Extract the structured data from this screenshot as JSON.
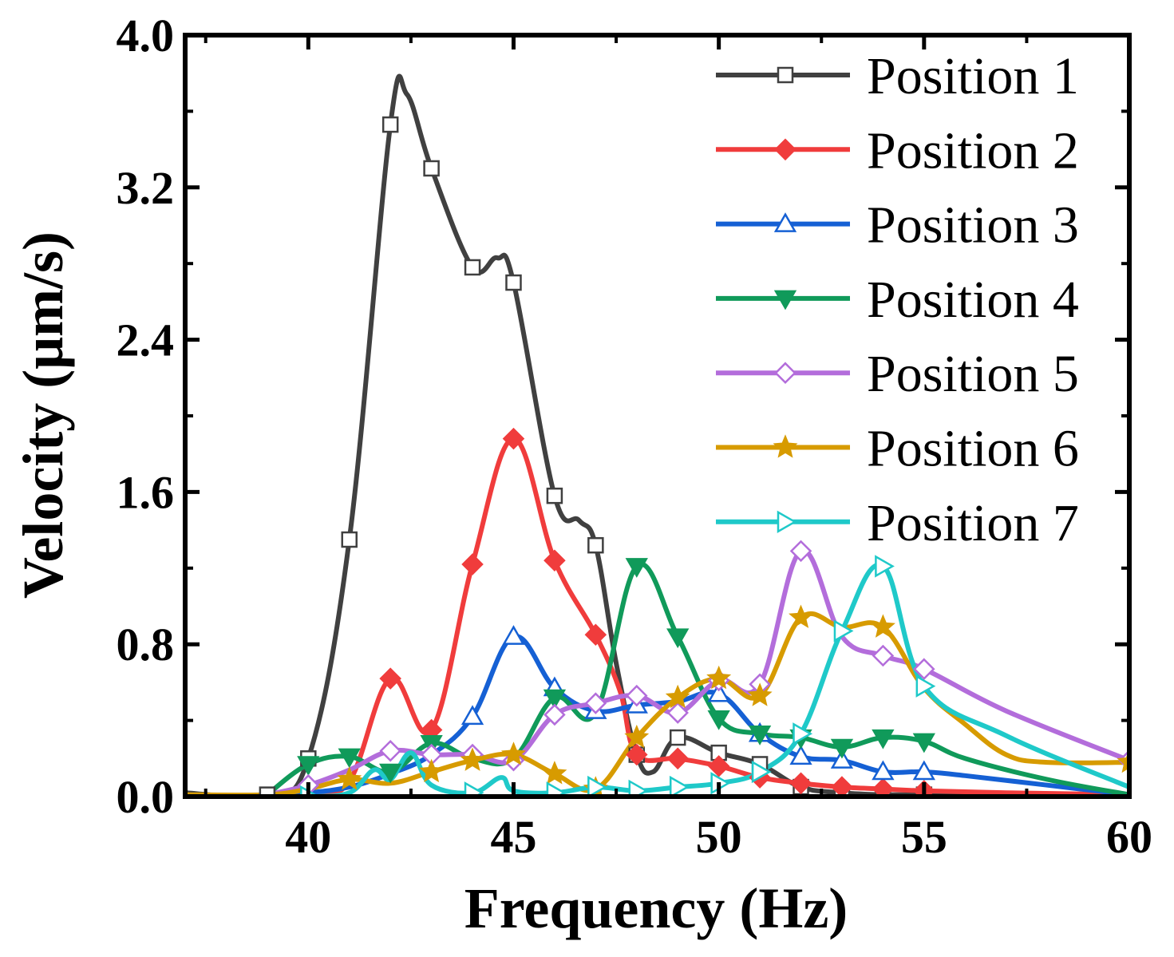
{
  "chart_data": {
    "type": "line",
    "xlabel": "Frequency (Hz)",
    "ylabel": "Velocity (μm/s)",
    "xlim": [
      37,
      60
    ],
    "ylim": [
      0,
      4.0
    ],
    "xticks": [
      40,
      45,
      50,
      55,
      60
    ],
    "xtick_labels": [
      "40",
      "45",
      "50",
      "55",
      "60"
    ],
    "yticks": [
      0,
      0.8,
      1.6,
      2.4,
      3.2,
      4.0
    ],
    "ytick_labels": [
      "0.0",
      "0.8",
      "1.6",
      "2.4",
      "3.2",
      "4.0"
    ],
    "legend_position": "top-right",
    "series": [
      {
        "name": "Position 1",
        "color": "#404040",
        "marker": "square-open",
        "points": [
          [
            37,
            0.02
          ],
          [
            39,
            0.01
          ],
          [
            40,
            0.2
          ],
          [
            41,
            1.35
          ],
          [
            42,
            3.53
          ],
          [
            42.4,
            3.69
          ],
          [
            43,
            3.3
          ],
          [
            44,
            2.78
          ],
          [
            44.6,
            2.83
          ],
          [
            45,
            2.7
          ],
          [
            46,
            1.58
          ],
          [
            46.6,
            1.45
          ],
          [
            47,
            1.32
          ],
          [
            47.5,
            0.7
          ],
          [
            48,
            0.22
          ],
          [
            48.4,
            0.13
          ],
          [
            49,
            0.31
          ],
          [
            50,
            0.23
          ],
          [
            51,
            0.17
          ],
          [
            52,
            0.05
          ],
          [
            53,
            0.02
          ],
          [
            54,
            0.01
          ],
          [
            55,
            0.01
          ],
          [
            60,
            0.01
          ]
        ],
        "markers": [
          [
            39,
            0.01
          ],
          [
            40,
            0.2
          ],
          [
            41,
            1.35
          ],
          [
            42,
            3.53
          ],
          [
            43,
            3.3
          ],
          [
            44,
            2.78
          ],
          [
            45,
            2.7
          ],
          [
            46,
            1.58
          ],
          [
            47,
            1.32
          ],
          [
            48,
            0.22
          ],
          [
            49,
            0.31
          ],
          [
            50,
            0.23
          ],
          [
            51,
            0.17
          ],
          [
            52,
            0.05
          ],
          [
            53,
            0.02
          ],
          [
            54,
            0.01
          ],
          [
            55,
            0.01
          ]
        ]
      },
      {
        "name": "Position 2",
        "color": "#f03c3c",
        "marker": "diamond-filled",
        "points": [
          [
            39,
            0.01
          ],
          [
            40,
            0.01
          ],
          [
            41,
            0.08
          ],
          [
            42,
            0.62
          ],
          [
            43,
            0.35
          ],
          [
            44,
            1.22
          ],
          [
            45,
            1.88
          ],
          [
            46,
            1.24
          ],
          [
            47,
            0.85
          ],
          [
            47.6,
            0.55
          ],
          [
            48,
            0.22
          ],
          [
            49,
            0.2
          ],
          [
            50,
            0.16
          ],
          [
            51,
            0.1
          ],
          [
            52,
            0.07
          ],
          [
            53,
            0.05
          ],
          [
            54,
            0.04
          ],
          [
            55,
            0.03
          ],
          [
            57,
            0.02
          ],
          [
            60,
            0.01
          ]
        ],
        "markers": [
          [
            42,
            0.62
          ],
          [
            43,
            0.35
          ],
          [
            44,
            1.22
          ],
          [
            45,
            1.88
          ],
          [
            46,
            1.24
          ],
          [
            47,
            0.85
          ],
          [
            48,
            0.22
          ],
          [
            49,
            0.2
          ],
          [
            50,
            0.16
          ],
          [
            51,
            0.1
          ],
          [
            52,
            0.07
          ],
          [
            53,
            0.05
          ],
          [
            54,
            0.04
          ],
          [
            55,
            0.03
          ]
        ]
      },
      {
        "name": "Position 3",
        "color": "#1560d4",
        "marker": "triangle-up-open",
        "points": [
          [
            39,
            0.01
          ],
          [
            40,
            0.02
          ],
          [
            41,
            0.05
          ],
          [
            42,
            0.12
          ],
          [
            43,
            0.22
          ],
          [
            44,
            0.42
          ],
          [
            45,
            0.84
          ],
          [
            46,
            0.57
          ],
          [
            47,
            0.45
          ],
          [
            48,
            0.48
          ],
          [
            49,
            0.5
          ],
          [
            50,
            0.54
          ],
          [
            51,
            0.33
          ],
          [
            52,
            0.21
          ],
          [
            53,
            0.19
          ],
          [
            54,
            0.13
          ],
          [
            55,
            0.13
          ],
          [
            56,
            0.11
          ],
          [
            58,
            0.06
          ],
          [
            60,
            0.01
          ]
        ],
        "markers": [
          [
            44,
            0.42
          ],
          [
            45,
            0.84
          ],
          [
            46,
            0.57
          ],
          [
            47,
            0.45
          ],
          [
            48,
            0.48
          ],
          [
            50,
            0.54
          ],
          [
            51,
            0.33
          ],
          [
            52,
            0.21
          ],
          [
            53,
            0.19
          ],
          [
            54,
            0.13
          ],
          [
            55,
            0.13
          ]
        ]
      },
      {
        "name": "Position 4",
        "color": "#109a5a",
        "marker": "triangle-down-filled",
        "points": [
          [
            39,
            0.01
          ],
          [
            40,
            0.17
          ],
          [
            41,
            0.21
          ],
          [
            42,
            0.13
          ],
          [
            43,
            0.28
          ],
          [
            44,
            0.2
          ],
          [
            45,
            0.2
          ],
          [
            46,
            0.52
          ],
          [
            47,
            0.44
          ],
          [
            48,
            1.21
          ],
          [
            49,
            0.84
          ],
          [
            50,
            0.41
          ],
          [
            51,
            0.33
          ],
          [
            52,
            0.31
          ],
          [
            53,
            0.26
          ],
          [
            54,
            0.31
          ],
          [
            55,
            0.29
          ],
          [
            56,
            0.2
          ],
          [
            58,
            0.09
          ],
          [
            60,
            0.01
          ]
        ],
        "markers": [
          [
            40,
            0.17
          ],
          [
            41,
            0.21
          ],
          [
            42,
            0.13
          ],
          [
            43,
            0.28
          ],
          [
            46,
            0.52
          ],
          [
            48,
            1.21
          ],
          [
            49,
            0.84
          ],
          [
            50,
            0.41
          ],
          [
            51,
            0.33
          ],
          [
            52,
            0.31
          ],
          [
            53,
            0.26
          ],
          [
            54,
            0.31
          ],
          [
            55,
            0.29
          ]
        ]
      },
      {
        "name": "Position 5",
        "color": "#b36ddb",
        "marker": "diamond-open",
        "points": [
          [
            39,
            0.01
          ],
          [
            40,
            0.06
          ],
          [
            41,
            0.14
          ],
          [
            42,
            0.24
          ],
          [
            43,
            0.22
          ],
          [
            44,
            0.22
          ],
          [
            45,
            0.19
          ],
          [
            46,
            0.43
          ],
          [
            47,
            0.49
          ],
          [
            48,
            0.53
          ],
          [
            49,
            0.44
          ],
          [
            50,
            0.61
          ],
          [
            51,
            0.59
          ],
          [
            52,
            1.29
          ],
          [
            53,
            0.84
          ],
          [
            54,
            0.74
          ],
          [
            55,
            0.67
          ],
          [
            57,
            0.45
          ],
          [
            60,
            0.19
          ]
        ],
        "markers": [
          [
            40,
            0.06
          ],
          [
            42,
            0.24
          ],
          [
            43,
            0.22
          ],
          [
            44,
            0.22
          ],
          [
            45,
            0.19
          ],
          [
            46,
            0.43
          ],
          [
            47,
            0.49
          ],
          [
            48,
            0.53
          ],
          [
            49,
            0.44
          ],
          [
            50,
            0.61
          ],
          [
            51,
            0.59
          ],
          [
            52,
            1.29
          ],
          [
            54,
            0.74
          ],
          [
            55,
            0.67
          ],
          [
            60,
            0.19
          ]
        ]
      },
      {
        "name": "Position 6",
        "color": "#d79b00",
        "marker": "star-filled",
        "points": [
          [
            37,
            0.01
          ],
          [
            39,
            0.01
          ],
          [
            40,
            0.04
          ],
          [
            41,
            0.09
          ],
          [
            42,
            0.07
          ],
          [
            43,
            0.13
          ],
          [
            44,
            0.19
          ],
          [
            45,
            0.22
          ],
          [
            46,
            0.12
          ],
          [
            47,
            0.04
          ],
          [
            48,
            0.31
          ],
          [
            49,
            0.52
          ],
          [
            50,
            0.62
          ],
          [
            51,
            0.53
          ],
          [
            52,
            0.94
          ],
          [
            53,
            0.89
          ],
          [
            54,
            0.89
          ],
          [
            55,
            0.57
          ],
          [
            56,
            0.38
          ],
          [
            57,
            0.22
          ],
          [
            58,
            0.18
          ],
          [
            60,
            0.18
          ]
        ],
        "markers": [
          [
            41,
            0.09
          ],
          [
            43,
            0.13
          ],
          [
            44,
            0.19
          ],
          [
            45,
            0.22
          ],
          [
            46,
            0.12
          ],
          [
            47,
            0.04
          ],
          [
            48,
            0.31
          ],
          [
            49,
            0.52
          ],
          [
            50,
            0.62
          ],
          [
            51,
            0.53
          ],
          [
            52,
            0.94
          ],
          [
            54,
            0.89
          ],
          [
            60,
            0.18
          ]
        ]
      },
      {
        "name": "Position 7",
        "color": "#1fc9c9",
        "marker": "triangle-right-open",
        "points": [
          [
            39,
            0.0
          ],
          [
            40,
            0.0
          ],
          [
            41,
            0.02
          ],
          [
            41.6,
            0.14
          ],
          [
            42,
            0.09
          ],
          [
            42.5,
            0.23
          ],
          [
            43,
            0.06
          ],
          [
            44,
            0.02
          ],
          [
            44.7,
            0.1
          ],
          [
            45,
            0.03
          ],
          [
            46,
            0.02
          ],
          [
            47,
            0.05
          ],
          [
            48,
            0.03
          ],
          [
            49,
            0.05
          ],
          [
            50,
            0.07
          ],
          [
            51,
            0.13
          ],
          [
            52,
            0.33
          ],
          [
            53,
            0.87
          ],
          [
            54,
            1.21
          ],
          [
            55,
            0.58
          ],
          [
            57,
            0.32
          ],
          [
            60,
            0.05
          ]
        ],
        "markers": [
          [
            40,
            0.0
          ],
          [
            44,
            0.02
          ],
          [
            46,
            0.02
          ],
          [
            47,
            0.05
          ],
          [
            48,
            0.03
          ],
          [
            49,
            0.05
          ],
          [
            50,
            0.07
          ],
          [
            51,
            0.13
          ],
          [
            52,
            0.33
          ],
          [
            53,
            0.87
          ],
          [
            54,
            1.21
          ],
          [
            55,
            0.58
          ]
        ]
      }
    ]
  }
}
